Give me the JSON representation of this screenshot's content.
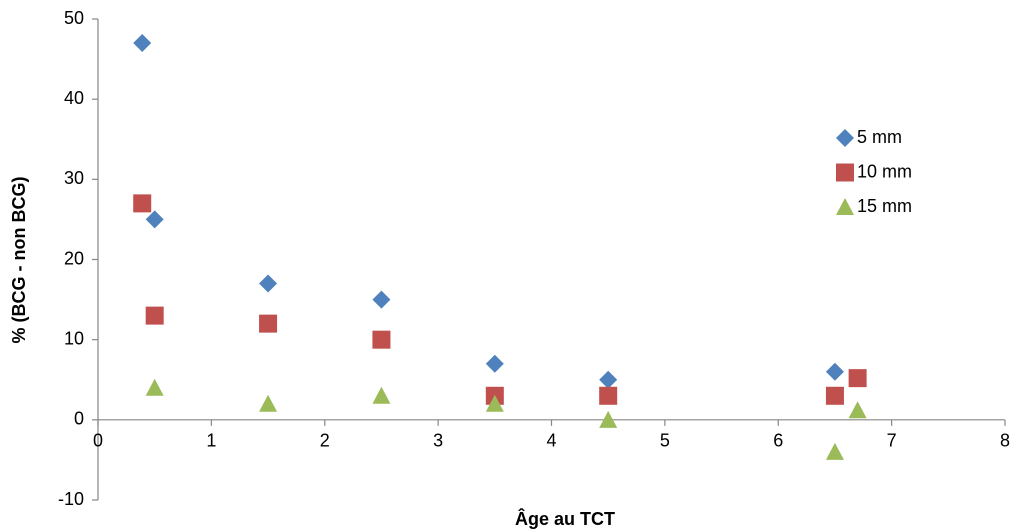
{
  "chart_data": {
    "type": "scatter",
    "x_label": "Âge au TCT",
    "y_label": "% (BCG - non BCG)",
    "xlim": [
      0,
      8
    ],
    "xticks": [
      0,
      1,
      2,
      3,
      4,
      5,
      6,
      7,
      8
    ],
    "ylim": [
      -10,
      50
    ],
    "yticks": [
      -10,
      0,
      10,
      20,
      30,
      40,
      50
    ],
    "grid": false,
    "legend": "right",
    "series": [
      {
        "name": "5 mm",
        "color": "#4f81bd",
        "marker": "diamond",
        "x": [
          0.39,
          0.5,
          1.5,
          2.5,
          3.5,
          4.5,
          6.5
        ],
        "values": [
          47,
          25,
          17,
          15,
          7,
          5,
          6
        ]
      },
      {
        "name": "10 mm",
        "color": "#c0504d",
        "marker": "square",
        "x": [
          0.39,
          0.5,
          1.5,
          2.5,
          3.5,
          4.5,
          6.5,
          6.7
        ],
        "values": [
          27,
          13,
          12,
          10,
          3,
          3,
          3,
          5.2
        ]
      },
      {
        "name": "15 mm",
        "color": "#9bbb59",
        "marker": "triangle",
        "x": [
          0.5,
          1.5,
          2.5,
          3.5,
          4.5,
          6.5,
          6.7
        ],
        "values": [
          4,
          2,
          3,
          2,
          0,
          -4,
          1.2
        ]
      }
    ]
  }
}
